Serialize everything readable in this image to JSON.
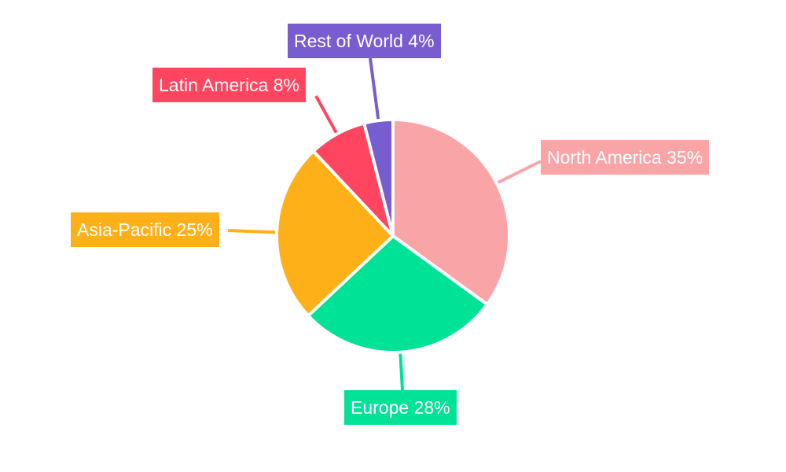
{
  "chart_data": {
    "type": "pie",
    "title": "",
    "start_angle": "top, clockwise",
    "slices": [
      {
        "label": "North America 35%",
        "name": "North America",
        "value": 35,
        "color": "#F9A5A8"
      },
      {
        "label": "Europe 28%",
        "name": "Europe",
        "value": 28,
        "color": "#00E396"
      },
      {
        "label": "Asia-Pacific 25%",
        "name": "Asia-Pacific",
        "value": 25,
        "color": "#FEB019"
      },
      {
        "label": "Latin America 8%",
        "name": "Latin America",
        "value": 8,
        "color": "#FF4560"
      },
      {
        "label": "Rest of World 4%",
        "name": "Rest of World",
        "value": 4,
        "color": "#775DD0"
      }
    ]
  }
}
